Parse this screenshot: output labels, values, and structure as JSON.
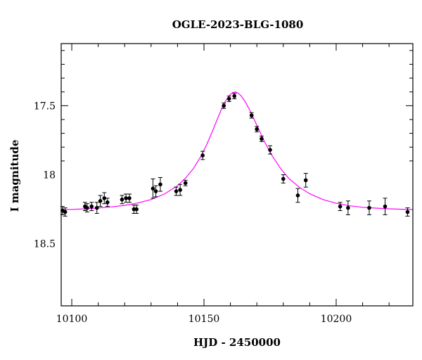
{
  "chart_data": {
    "type": "scatter",
    "title": "OGLE-2023-BLG-1080",
    "xlabel": "HJD - 2450000",
    "ylabel": "I magnitude",
    "xlim": [
      10096,
      10229
    ],
    "ylim": [
      18.95,
      17.05
    ],
    "y_inverted": true,
    "grid": false,
    "x_major_ticks": [
      10100,
      10150,
      10200
    ],
    "x_tick_labels": [
      "10100",
      "10150",
      "10200"
    ],
    "y_major_ticks": [
      17.5,
      18,
      18.5
    ],
    "y_tick_labels": [
      "17.5",
      "18",
      "18.5"
    ],
    "colors": {
      "model": "#ff00ff",
      "points": "#000000"
    },
    "series": [
      {
        "kind": "points-with-errorbars",
        "x": [
          10096.5,
          10097.5,
          10105.0,
          10105.8,
          10107.5,
          10109.5,
          10110.8,
          10112.3,
          10113.5,
          10119.0,
          10120.5,
          10121.8,
          10123.5,
          10124.5,
          10130.7,
          10131.8,
          10133.5,
          10139.5,
          10141.0,
          10143.0,
          10149.5,
          10157.5,
          10159.5,
          10161.5,
          10168.0,
          10170.0,
          10171.8,
          10175.0,
          10180.0,
          10185.5,
          10188.5,
          10201.5,
          10204.5,
          10212.5,
          10218.5,
          10227.0
        ],
        "y": [
          18.26,
          18.27,
          18.23,
          18.24,
          18.23,
          18.24,
          18.19,
          18.17,
          18.2,
          18.18,
          18.17,
          18.17,
          18.25,
          18.25,
          18.1,
          18.12,
          18.07,
          18.12,
          18.11,
          18.06,
          17.86,
          17.5,
          17.45,
          17.43,
          17.57,
          17.67,
          17.74,
          17.82,
          18.03,
          18.15,
          18.04,
          18.23,
          18.24,
          18.24,
          18.23,
          18.27
        ],
        "err": [
          0.03,
          0.03,
          0.03,
          0.03,
          0.03,
          0.04,
          0.04,
          0.04,
          0.03,
          0.03,
          0.03,
          0.03,
          0.03,
          0.03,
          0.07,
          0.04,
          0.05,
          0.03,
          0.04,
          0.02,
          0.03,
          0.02,
          0.02,
          0.02,
          0.02,
          0.02,
          0.02,
          0.03,
          0.03,
          0.05,
          0.05,
          0.03,
          0.05,
          0.05,
          0.06,
          0.03
        ]
      },
      {
        "kind": "model-curve",
        "x": [
          10096,
          10100,
          10105,
          10110,
          10115,
          10120,
          10125,
          10130,
          10135,
          10140,
          10143,
          10146,
          10149,
          10151,
          10153,
          10155,
          10157,
          10158.5,
          10160,
          10161,
          10162,
          10163,
          10164,
          10165.5,
          10167,
          10169,
          10171,
          10173,
          10176,
          10179,
          10182,
          10186,
          10190,
          10195,
          10200,
          10205,
          10210,
          10215,
          10220,
          10225,
          10229
        ],
        "y": [
          18.254,
          18.251,
          18.247,
          18.241,
          18.233,
          18.222,
          18.205,
          18.18,
          18.14,
          18.08,
          18.025,
          17.955,
          17.862,
          17.783,
          17.695,
          17.6,
          17.508,
          17.455,
          17.418,
          17.404,
          17.401,
          17.41,
          17.428,
          17.468,
          17.52,
          17.6,
          17.683,
          17.765,
          17.87,
          17.955,
          18.025,
          18.09,
          18.138,
          18.18,
          18.207,
          18.225,
          18.236,
          18.242,
          18.247,
          18.25,
          18.252
        ]
      }
    ]
  }
}
